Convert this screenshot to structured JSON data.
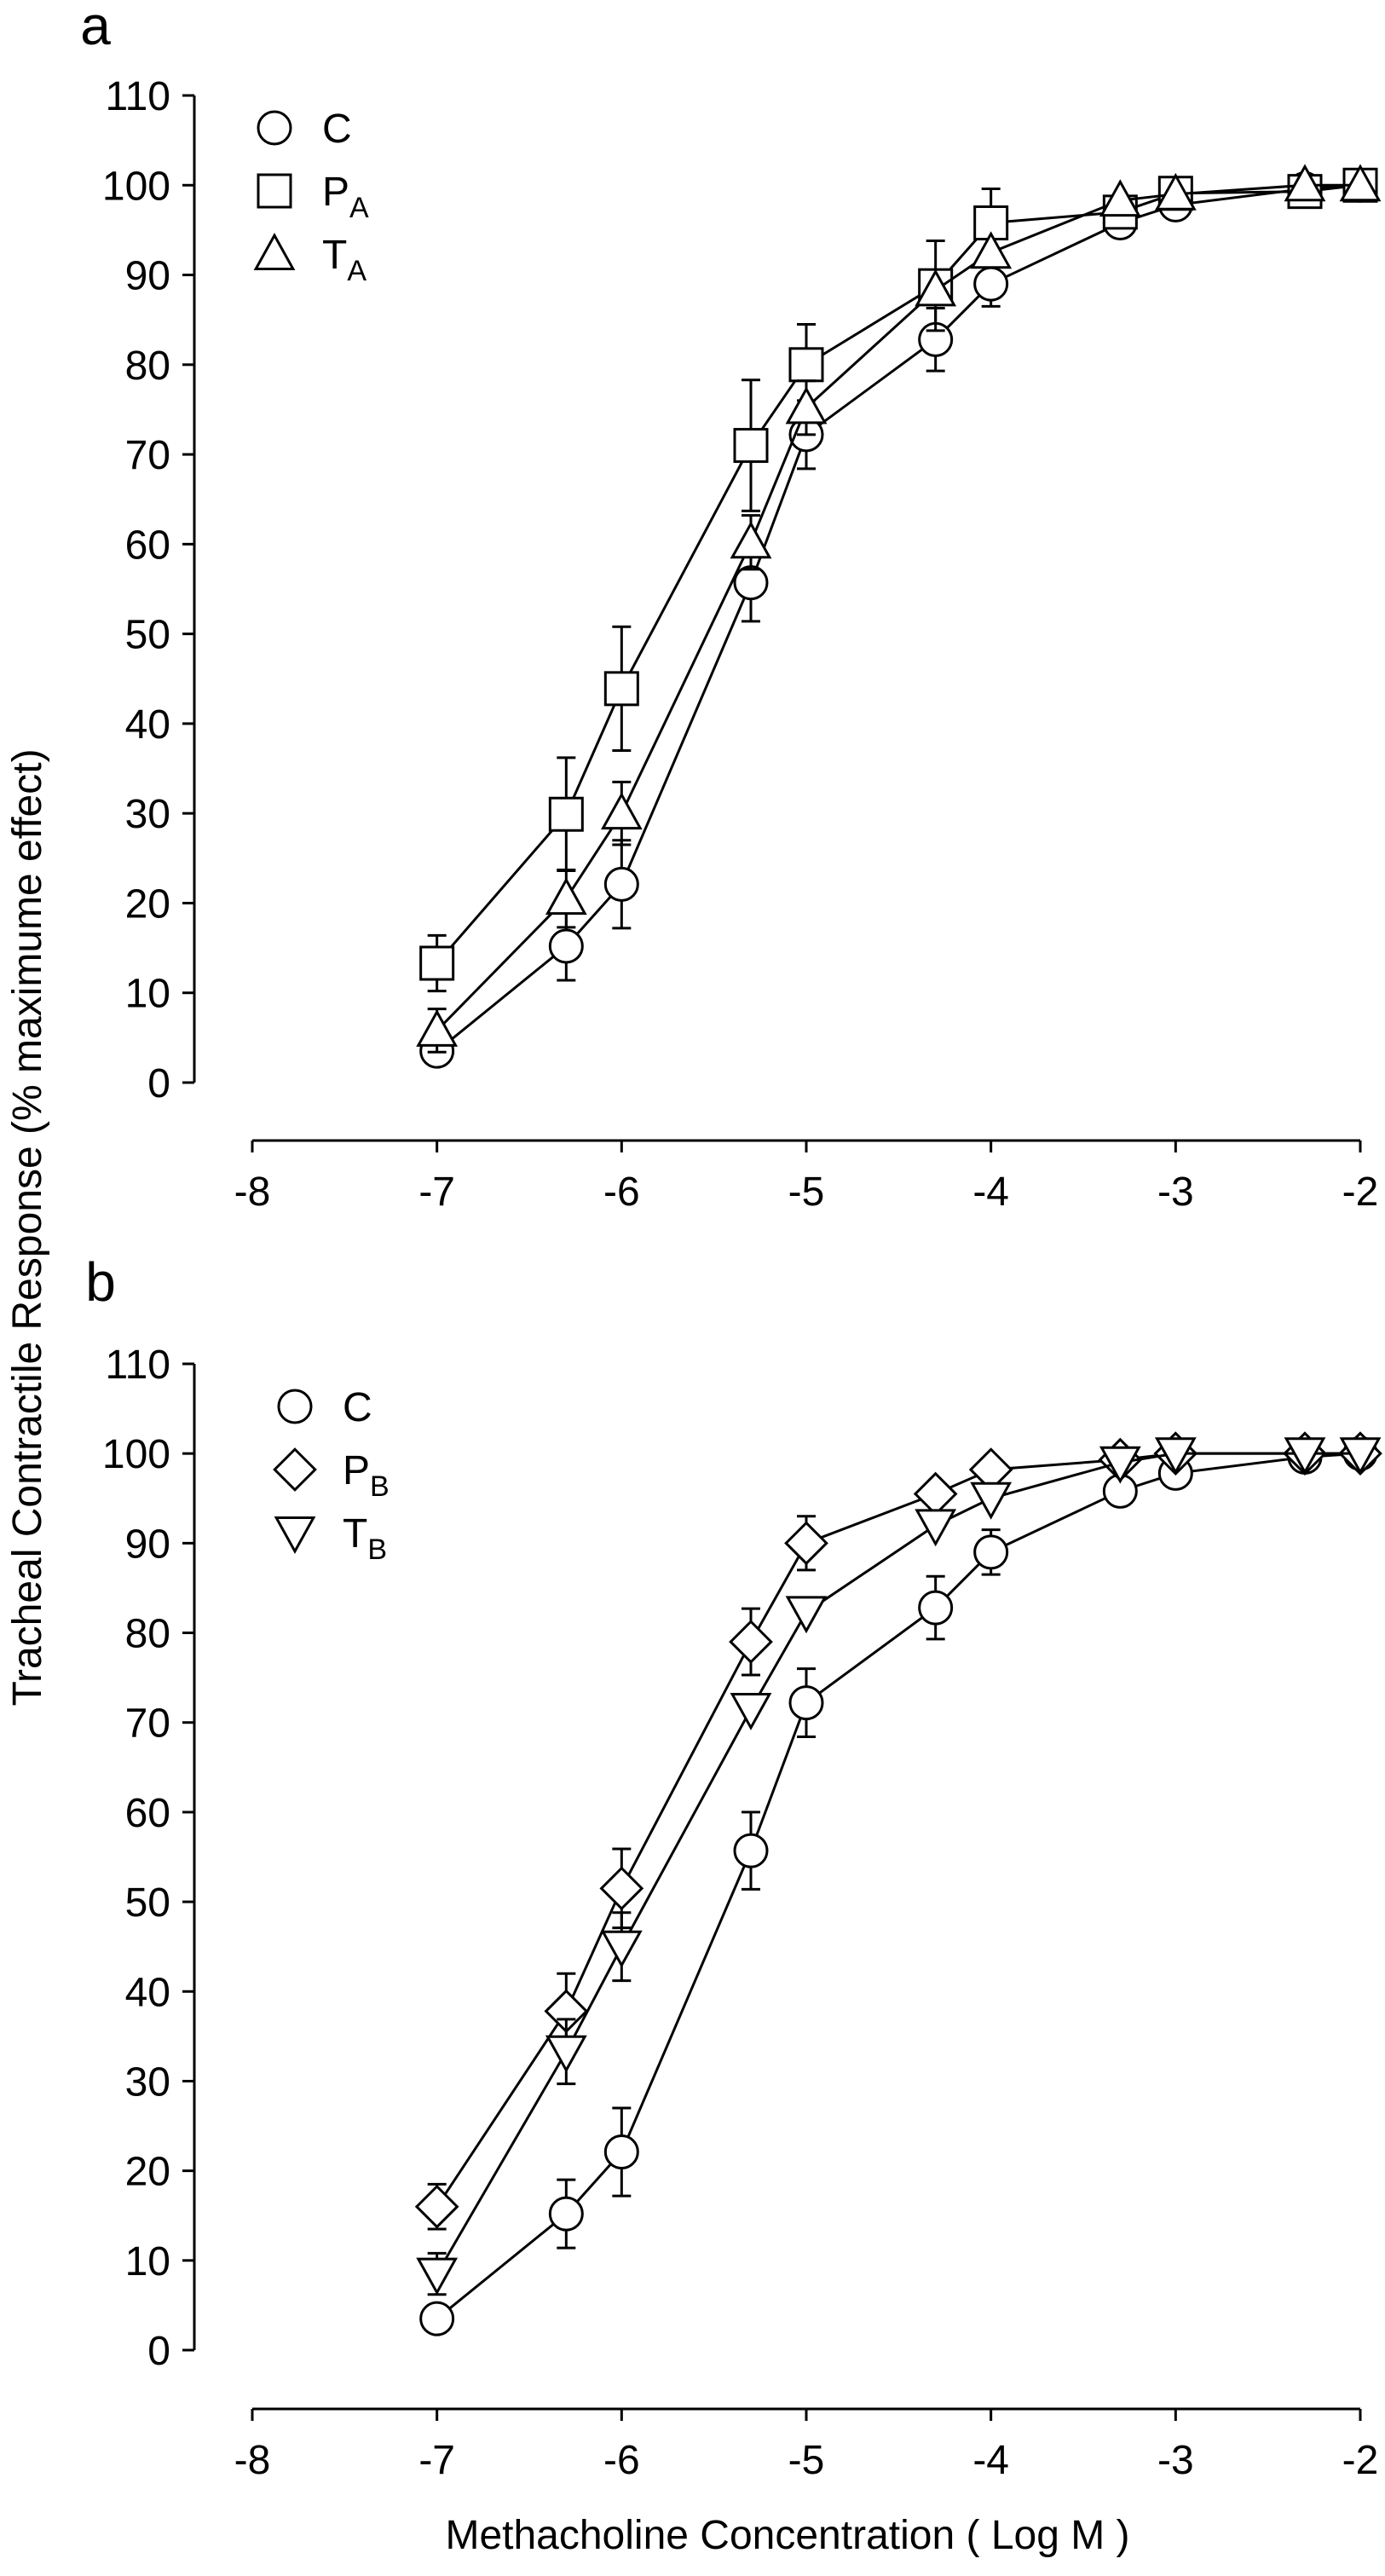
{
  "chart_data": [
    {
      "type": "line",
      "panel_label": "a",
      "xlabel": "",
      "ylabel": "",
      "xlim": [
        -8,
        -2
      ],
      "ylim": [
        0,
        110
      ],
      "xticks": [
        "-8",
        "-7",
        "-6",
        "-5",
        "-4",
        "-3",
        "-2"
      ],
      "yticks": [
        "0",
        "10",
        "20",
        "30",
        "40",
        "50",
        "60",
        "70",
        "80",
        "90",
        "100",
        "110"
      ],
      "legend_position": "top-left",
      "grid": false,
      "series": [
        {
          "key": "C",
          "name": "C",
          "name_sub": "",
          "marker": "circle",
          "x": [
            -7,
            -6.3,
            -6,
            -5.3,
            -5,
            -4.3,
            -4,
            -3.3,
            -3,
            -2.3,
            -2
          ],
          "y": [
            3.5,
            15.2,
            22.1,
            55.7,
            72.2,
            82.8,
            89.0,
            95.8,
            97.8,
            99.6,
            100
          ],
          "err": [
            0,
            3.8,
            4.9,
            4.3,
            3.8,
            3.5,
            2.5,
            0,
            0,
            0,
            0
          ]
        },
        {
          "key": "PA",
          "name": "P",
          "name_sub": "A",
          "marker": "square",
          "x": [
            -7,
            -6.3,
            -6,
            -5.3,
            -5,
            -4.3,
            -4,
            -3.3,
            -3,
            -2.3,
            -2
          ],
          "y": [
            13.3,
            29.9,
            43.9,
            71.0,
            80.0,
            88.8,
            95.8,
            97.0,
            99.1,
            99.3,
            100
          ],
          "err": [
            3.1,
            6.3,
            6.9,
            7.3,
            4.5,
            5.0,
            3.8,
            0,
            0,
            0,
            0
          ]
        },
        {
          "key": "TA",
          "name": "T",
          "name_sub": "A",
          "marker": "triangle-up",
          "x": [
            -7,
            -6.3,
            -6,
            -5.3,
            -5,
            -4.3,
            -4,
            -3.3,
            -3,
            -2.3,
            -2
          ],
          "y": [
            5.8,
            20.5,
            30.0,
            60.2,
            75.2,
            88.3,
            92.5,
            98.3,
            99.0,
            100,
            100
          ],
          "err": [
            2.4,
            3.2,
            3.5,
            3.0,
            3.0,
            0,
            0,
            0,
            0,
            0,
            0
          ]
        }
      ]
    },
    {
      "type": "line",
      "panel_label": "b",
      "xlabel": "Methacholine Concentration ( Log M )",
      "ylabel": "",
      "xlim": [
        -8,
        -2
      ],
      "ylim": [
        0,
        110
      ],
      "xticks": [
        "-8",
        "-7",
        "-6",
        "-5",
        "-4",
        "-3",
        "-2"
      ],
      "yticks": [
        "0",
        "10",
        "20",
        "30",
        "40",
        "50",
        "60",
        "70",
        "80",
        "90",
        "100",
        "110"
      ],
      "legend_position": "top-left",
      "grid": false,
      "series": [
        {
          "key": "C",
          "name": "C",
          "name_sub": "",
          "marker": "circle",
          "x": [
            -7,
            -6.3,
            -6,
            -5.3,
            -5,
            -4.3,
            -4,
            -3.3,
            -3,
            -2.3,
            -2
          ],
          "y": [
            3.5,
            15.2,
            22.1,
            55.7,
            72.2,
            82.8,
            89.0,
            95.8,
            97.8,
            99.6,
            100
          ],
          "err": [
            0,
            3.8,
            4.9,
            4.3,
            3.8,
            3.5,
            2.5,
            0,
            0,
            0,
            0
          ]
        },
        {
          "key": "PB",
          "name": "P",
          "name_sub": "B",
          "marker": "diamond",
          "x": [
            -7,
            -6.3,
            -6,
            -5.3,
            -5,
            -4.3,
            -4,
            -3.3,
            -3,
            -2.3,
            -2
          ],
          "y": [
            16.0,
            37.8,
            51.5,
            79.0,
            90.0,
            95.5,
            98.2,
            99.3,
            100,
            100,
            100
          ],
          "err": [
            2.5,
            4.2,
            4.4,
            3.7,
            3.0,
            0,
            0,
            0,
            0,
            0,
            0
          ]
        },
        {
          "key": "TB",
          "name": "T",
          "name_sub": "B",
          "marker": "triangle-down",
          "x": [
            -7,
            -6.3,
            -6,
            -5.3,
            -5,
            -4.3,
            -4,
            -3.3,
            -3,
            -2.3,
            -2
          ],
          "y": [
            8.5,
            33.3,
            45.0,
            71.5,
            82.3,
            92.0,
            95.0,
            99.0,
            100,
            100,
            100
          ],
          "err": [
            2.3,
            3.6,
            3.8,
            0,
            0,
            0,
            0,
            0,
            0,
            0,
            0
          ]
        }
      ]
    }
  ],
  "shared_ylabel": "Tracheal Contractile Response (% maximume effect)"
}
